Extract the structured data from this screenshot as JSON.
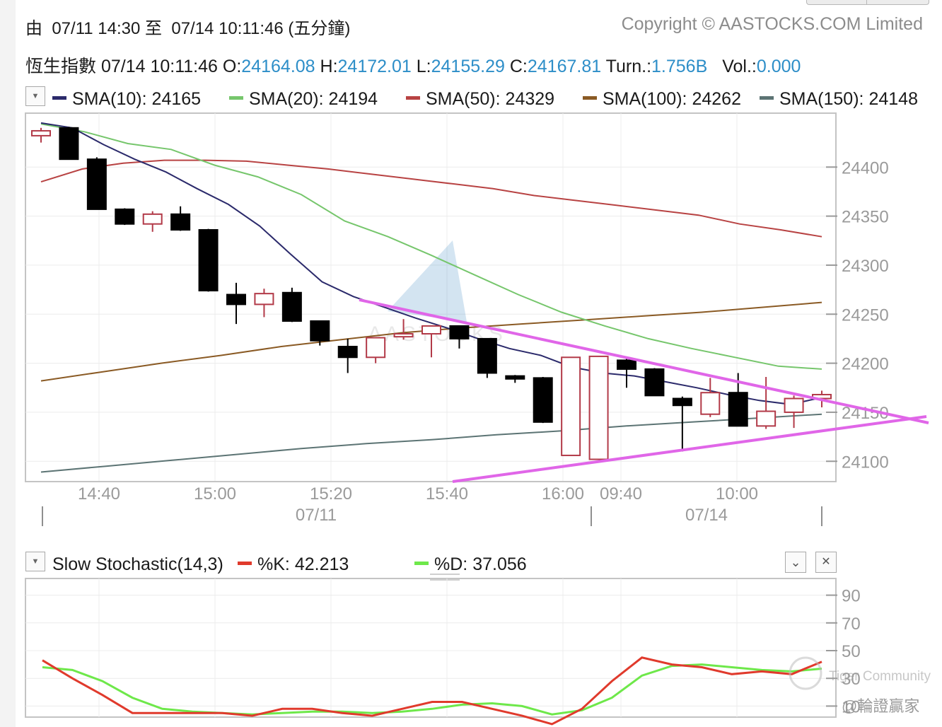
{
  "header": {
    "range_text": "由  07/11 14:30 至  07/14 10:11:46 (五分鐘)",
    "copyright": "Copyright © AASTOCKS.COM Limited"
  },
  "quote": {
    "name": "恆生指數",
    "time": "07/14 10:11:46",
    "open_label": "O:",
    "open": "24164.08",
    "high_label": "H:",
    "high": "24172.01",
    "low_label": "L:",
    "low": "24155.29",
    "close_label": "C:",
    "close": "24167.81",
    "turn_label": "Turn.:",
    "turn": "1.756B",
    "vol_label": "Vol.:",
    "vol": "0.000"
  },
  "colors": {
    "up_candle": "#b23a48",
    "down_candle": "#000000",
    "value_text": "#2d8ec8",
    "trendline": "#e066e8",
    "sma10": "#2b2a6b",
    "sma20": "#76c66c",
    "sma50": "#b84343",
    "sma100": "#8a5a24",
    "sma150": "#5c7474",
    "k": "#e03a2c",
    "d": "#6ee84a"
  },
  "icons": {
    "dropdown": "triangle-down",
    "collapse": "chevron-down",
    "close": "x-mark"
  },
  "watermarks": {
    "center": "AASTOCKS",
    "community": "Tiger Community",
    "handle": "@輪證贏家"
  },
  "chart_data": [
    {
      "type": "candlestick",
      "ylim": [
        24080,
        24455
      ],
      "y_ticks": [
        24100,
        24150,
        24200,
        24250,
        24300,
        24350,
        24400
      ],
      "x_time_ticks": [
        "14:40",
        "15:00",
        "15:20",
        "15:40",
        "16:00",
        "09:40",
        "10:00"
      ],
      "x_date_labels": [
        "07/11",
        "07/14"
      ],
      "legend": [
        {
          "name": "SMA(10)",
          "value": "24165",
          "color": "#2b2a6b"
        },
        {
          "name": "SMA(20)",
          "value": "24194",
          "color": "#76c66c"
        },
        {
          "name": "SMA(50)",
          "value": "24329",
          "color": "#b84343"
        },
        {
          "name": "SMA(100)",
          "value": "24262",
          "color": "#8a5a24"
        },
        {
          "name": "SMA(150)",
          "value": "24148",
          "color": "#5c7474"
        }
      ],
      "candles": [
        {
          "o": 24432,
          "h": 24440,
          "l": 24425,
          "c": 24437
        },
        {
          "o": 24440,
          "h": 24441,
          "l": 24408,
          "c": 24408
        },
        {
          "o": 24408,
          "h": 24410,
          "l": 24357,
          "c": 24357
        },
        {
          "o": 24357,
          "h": 24358,
          "l": 24341,
          "c": 24342
        },
        {
          "o": 24342,
          "h": 24355,
          "l": 24334,
          "c": 24352
        },
        {
          "o": 24352,
          "h": 24360,
          "l": 24335,
          "c": 24336
        },
        {
          "o": 24336,
          "h": 24337,
          "l": 24273,
          "c": 24274
        },
        {
          "o": 24270,
          "h": 24282,
          "l": 24240,
          "c": 24260
        },
        {
          "o": 24260,
          "h": 24276,
          "l": 24247,
          "c": 24271
        },
        {
          "o": 24272,
          "h": 24277,
          "l": 24242,
          "c": 24243
        },
        {
          "o": 24243,
          "h": 24243,
          "l": 24218,
          "c": 24223
        },
        {
          "o": 24217,
          "h": 24225,
          "l": 24190,
          "c": 24206
        },
        {
          "o": 24206,
          "h": 24226,
          "l": 24200,
          "c": 24226
        },
        {
          "o": 24227,
          "h": 24245,
          "l": 24224,
          "c": 24230
        },
        {
          "o": 24230,
          "h": 24237,
          "l": 24206,
          "c": 24238
        },
        {
          "o": 24238,
          "h": 24238,
          "l": 24215,
          "c": 24225
        },
        {
          "o": 24225,
          "h": 24225,
          "l": 24185,
          "c": 24190
        },
        {
          "o": 24187,
          "h": 24188,
          "l": 24180,
          "c": 24184
        },
        {
          "o": 24185,
          "h": 24186,
          "l": 24139,
          "c": 24140
        },
        {
          "o": 24106,
          "h": 24206,
          "l": 24106,
          "c": 24206
        },
        {
          "o": 24102,
          "h": 24205,
          "l": 24102,
          "c": 24207
        },
        {
          "o": 24203,
          "h": 24205,
          "l": 24175,
          "c": 24194
        },
        {
          "o": 24194,
          "h": 24195,
          "l": 24167,
          "c": 24167
        },
        {
          "o": 24164,
          "h": 24166,
          "l": 24110,
          "c": 24157
        },
        {
          "o": 24148,
          "h": 24185,
          "l": 24145,
          "c": 24170
        },
        {
          "o": 24170,
          "h": 24190,
          "l": 24136,
          "c": 24136
        },
        {
          "o": 24136,
          "h": 24186,
          "l": 24133,
          "c": 24151
        },
        {
          "o": 24150,
          "h": 24167,
          "l": 24134,
          "c": 24164
        },
        {
          "o": 24164,
          "h": 24172,
          "l": 24155,
          "c": 24168
        }
      ],
      "sma10": [
        24445,
        24440,
        24423,
        24408,
        24395,
        24378,
        24362,
        24340,
        24311,
        24283,
        24268,
        24257,
        24246,
        24236,
        24225,
        24215,
        24208,
        24196,
        24190,
        24187,
        24181,
        24175,
        24168,
        24162,
        24158,
        24165
      ],
      "sma20": [
        24444,
        24436,
        24424,
        24418,
        24402,
        24390,
        24372,
        24345,
        24329,
        24310,
        24290,
        24270,
        24252,
        24238,
        24225,
        24215,
        24206,
        24197,
        24194
      ],
      "sma50": [
        24385,
        24398,
        24404,
        24407,
        24407,
        24406,
        24402,
        24398,
        24393,
        24388,
        24383,
        24378,
        24371,
        24366,
        24361,
        24356,
        24351,
        24342,
        24336,
        24329
      ],
      "sma100": [
        24182,
        24191,
        24200,
        24208,
        24217,
        24224,
        24231,
        24236,
        24240,
        24244,
        24248,
        24252,
        24257,
        24262
      ],
      "sma150": [
        24089,
        24095,
        24101,
        24107,
        24113,
        24118,
        24122,
        24127,
        24131,
        24136,
        24140,
        24144,
        24148
      ]
    },
    {
      "type": "line",
      "title": "Slow Stochastic(14,3)",
      "ylim": [
        0,
        100
      ],
      "y_ticks": [
        10,
        30,
        50,
        70,
        90
      ],
      "series": [
        {
          "name": "%K",
          "value": "42.213",
          "color": "#e03a2c",
          "values": [
            43,
            30,
            18,
            5,
            5,
            5,
            5,
            3,
            8,
            8,
            5,
            3,
            8,
            13,
            13,
            8,
            3,
            -3,
            8,
            28,
            45,
            40,
            38,
            33,
            35,
            33,
            42
          ]
        },
        {
          "name": "%D",
          "value": "37.056",
          "color": "#6ee84a",
          "values": [
            38,
            36,
            28,
            16,
            8,
            6,
            5,
            4,
            5,
            6,
            6,
            5,
            6,
            8,
            11,
            12,
            10,
            4,
            7,
            16,
            32,
            39,
            40,
            38,
            36,
            35,
            37
          ]
        }
      ]
    }
  ]
}
